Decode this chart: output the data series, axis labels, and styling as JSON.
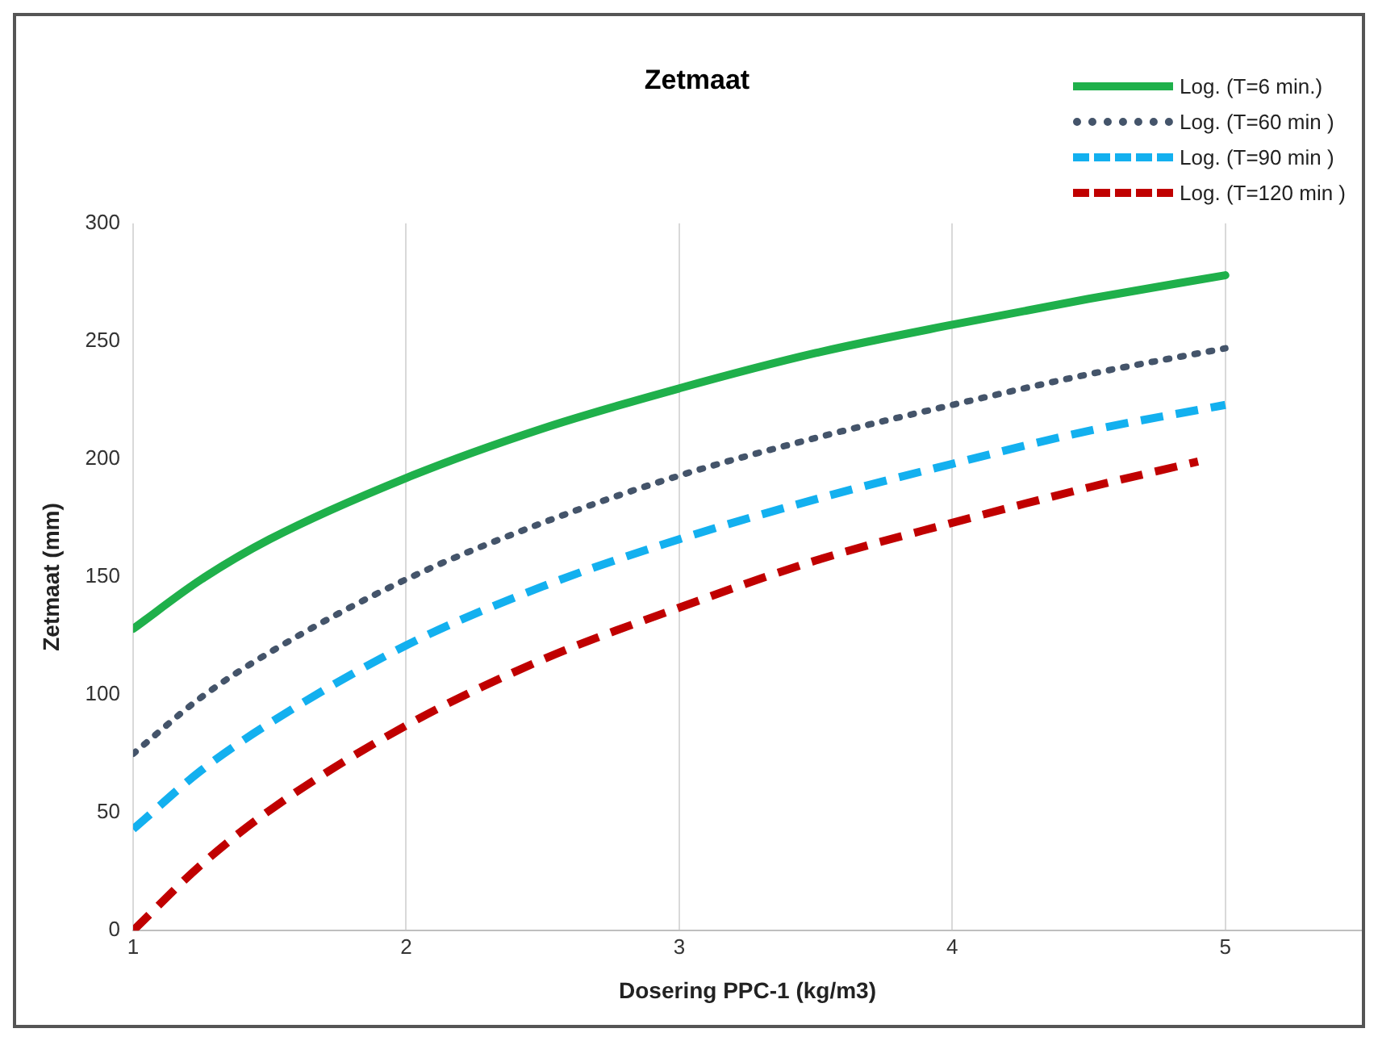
{
  "chart_data": {
    "type": "line",
    "title": "Zetmaat",
    "xlabel": "Dosering PPC-1 (kg/m3)",
    "ylabel": "Zetmaat (mm)",
    "x": [
      1,
      1.25,
      1.5,
      2,
      2.5,
      3,
      3.5,
      4,
      4.5,
      5
    ],
    "series": [
      {
        "name": "Log. (T=6 min.)",
        "color": "#1fb04b",
        "line_style": "solid",
        "values": [
          128,
          149,
          166,
          192,
          213,
          230,
          245,
          257,
          268,
          278
        ]
      },
      {
        "name": "Log. (T=60 min )",
        "color": "#44546a",
        "line_style": "dotted",
        "values": [
          75,
          99,
          118,
          149,
          173,
          193,
          209,
          223,
          236,
          247
        ]
      },
      {
        "name": "Log. (T=90 min )",
        "color": "#13b0ef",
        "line_style": "dashed",
        "values": [
          43,
          68,
          88,
          121,
          146,
          166,
          183,
          198,
          212,
          223
        ]
      },
      {
        "name": "Log. (T=120 min )",
        "color": "#c00000",
        "line_style": "dashed",
        "x": [
          1,
          1.25,
          1.5,
          2,
          2.5,
          3,
          3.5,
          4,
          4.5,
          4.9
        ],
        "values": [
          0,
          28,
          51,
          87,
          115,
          137,
          157,
          173,
          188,
          199
        ]
      }
    ],
    "xlim": [
      1,
      5.5
    ],
    "xticks": [
      1,
      2,
      3,
      4,
      5
    ],
    "ylim": [
      0,
      300
    ],
    "yticks": [
      0,
      50,
      100,
      150,
      200,
      250,
      300
    ],
    "grid": "x",
    "legend": "top right",
    "marker": "none"
  }
}
